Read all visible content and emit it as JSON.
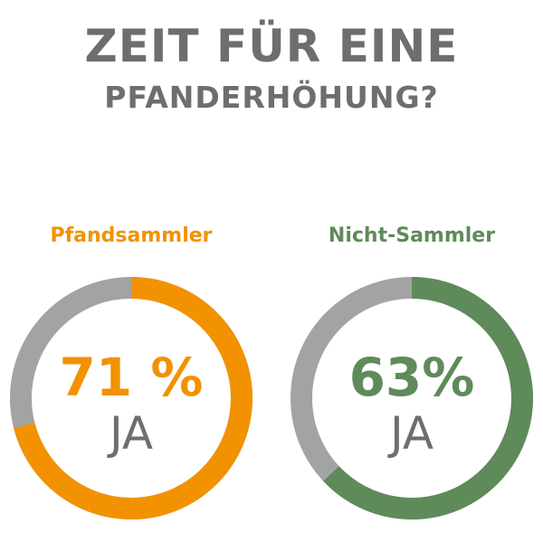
{
  "title": {
    "line1": "ZEIT FÜR EINE",
    "line2": "PFANDERHÖHUNG?"
  },
  "colors": {
    "title": "#6e6e6e",
    "track": "#a3a3a3",
    "orange": "#f29200",
    "green": "#5f8a5a"
  },
  "chart_data": [
    {
      "type": "pie",
      "variant": "donut",
      "title": "Pfandsammler",
      "value": 71,
      "value_label": "71 %",
      "center_label": "JA",
      "color": "#f29200",
      "track_color": "#a3a3a3"
    },
    {
      "type": "pie",
      "variant": "donut",
      "title": "Nicht-Sammler",
      "value": 63,
      "value_label": "63%",
      "center_label": "JA",
      "color": "#5f8a5a",
      "track_color": "#a3a3a3"
    }
  ]
}
